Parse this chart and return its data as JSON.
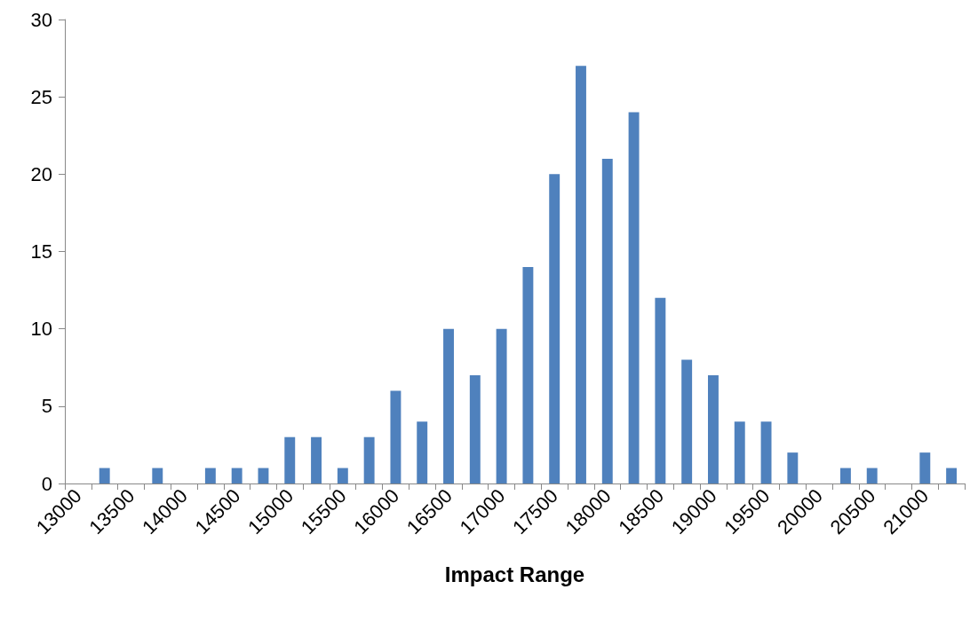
{
  "chart_data": {
    "type": "bar",
    "xlabel": "Impact Range",
    "categories": [
      "13000",
      null,
      "13500",
      null,
      "14000",
      null,
      "14500",
      null,
      "15000",
      null,
      "15500",
      null,
      "16000",
      null,
      "16500",
      null,
      "17000",
      null,
      "17500",
      null,
      "18000",
      null,
      "18500",
      null,
      "19000",
      null,
      "19500",
      null,
      "20000",
      null,
      "20500",
      null,
      "21000",
      null
    ],
    "values": [
      0,
      1,
      0,
      1,
      0,
      1,
      1,
      1,
      3,
      3,
      1,
      3,
      6,
      4,
      10,
      7,
      10,
      14,
      20,
      27,
      21,
      24,
      12,
      8,
      7,
      4,
      4,
      2,
      0,
      1,
      1,
      0,
      2,
      1
    ],
    "color": "#4f81bd",
    "ylim": [
      0,
      30
    ],
    "yticks": [
      0,
      5,
      10,
      15,
      20,
      25,
      30
    ],
    "grid": false
  }
}
